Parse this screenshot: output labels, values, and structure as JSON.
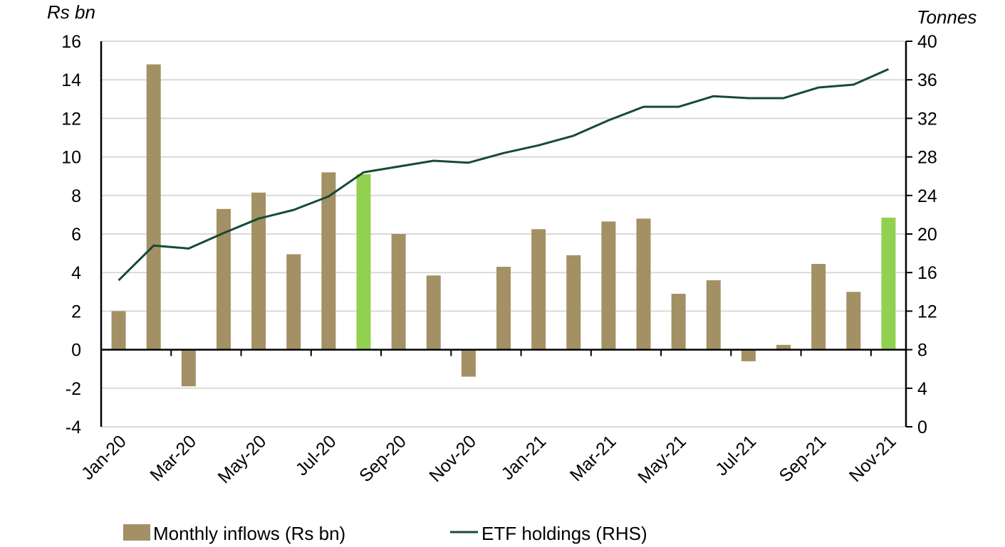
{
  "chart_data": {
    "type": "bar",
    "title": "",
    "left_axis_label": "Rs bn",
    "right_axis_label": "Tonnes",
    "categories": [
      "Jan-20",
      "Feb-20",
      "Mar-20",
      "Apr-20",
      "May-20",
      "Jun-20",
      "Jul-20",
      "Aug-20",
      "Sep-20",
      "Oct-20",
      "Nov-20",
      "Dec-20",
      "Jan-21",
      "Feb-21",
      "Mar-21",
      "Apr-21",
      "May-21",
      "Jun-21",
      "Jul-21",
      "Aug-21",
      "Sep-21",
      "Oct-21",
      "Nov-21"
    ],
    "x_tick_labels": [
      "Jan-20",
      "Mar-20",
      "May-20",
      "Jul-20",
      "Sep-20",
      "Nov-20",
      "Jan-21",
      "Mar-21",
      "May-21",
      "Jul-21",
      "Sep-21",
      "Nov-21"
    ],
    "ylim_left": [
      -4,
      16
    ],
    "yticks_left": [
      -4,
      -2,
      0,
      2,
      4,
      6,
      8,
      10,
      12,
      14,
      16
    ],
    "ylim_right": [
      0,
      40
    ],
    "yticks_right": [
      0,
      4,
      8,
      12,
      16,
      20,
      24,
      28,
      32,
      36,
      40
    ],
    "grid": true,
    "legend_position": "bottom",
    "series": [
      {
        "name": "Monthly inflows (Rs bn)",
        "type": "bar",
        "axis": "left",
        "color": "#A39064",
        "highlight_color": "#92D050",
        "highlighted": [
          "Aug-20",
          "Nov-21"
        ],
        "values": [
          2.0,
          14.8,
          -1.9,
          7.3,
          8.15,
          4.95,
          9.2,
          9.1,
          6.0,
          3.85,
          -1.4,
          4.3,
          6.25,
          4.9,
          6.65,
          6.8,
          2.9,
          3.6,
          -0.6,
          0.25,
          4.45,
          3.0,
          6.85
        ]
      },
      {
        "name": "ETF holdings (RHS)",
        "type": "line",
        "axis": "right",
        "color": "#174A35",
        "values": [
          15.2,
          18.8,
          18.5,
          20.1,
          21.6,
          22.5,
          23.9,
          26.4,
          27.0,
          27.6,
          27.4,
          28.4,
          29.2,
          30.2,
          31.8,
          33.2,
          33.2,
          34.3,
          34.1,
          34.1,
          35.2,
          35.5,
          37.1
        ]
      }
    ]
  }
}
